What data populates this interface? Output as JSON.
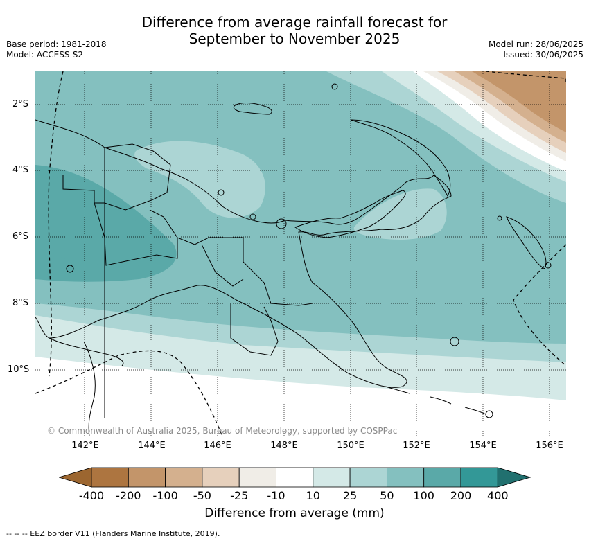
{
  "title_line1": "Difference from average rainfall forecast for",
  "title_line2": "September to November 2025",
  "base_period": "Base period: 1981-2018",
  "model": "Model: ACCESS-S2",
  "model_run": "Model run: 28/06/2025",
  "issued": "Issued: 30/06/2025",
  "lat_labels": [
    "2°S",
    "4°S",
    "6°S",
    "8°S",
    "10°S"
  ],
  "lon_labels": [
    "142°E",
    "144°E",
    "146°E",
    "148°E",
    "150°E",
    "152°E",
    "154°E",
    "156°E"
  ],
  "copyright": "© Commonwealth of Australia 2025, Bureau of Meteorology, supported by COSPPac",
  "colorbar": {
    "ticks": [
      "-400",
      "-200",
      "-100",
      "-50",
      "-25",
      "-10",
      "10",
      "25",
      "50",
      "100",
      "200",
      "400"
    ],
    "colors": [
      "#9c6630",
      "#ad7540",
      "#c3956a",
      "#d4b08e",
      "#e6d0bc",
      "#f0ede7",
      "#ffffff",
      "#d4e9e7",
      "#acd5d4",
      "#84c0bf",
      "#5aa9a8",
      "#339897",
      "#21706f"
    ],
    "label": "Difference from average (mm)"
  },
  "eez_note": "-- -- -- EEZ border V11 (Flanders Marine Institute, 2019)."
}
